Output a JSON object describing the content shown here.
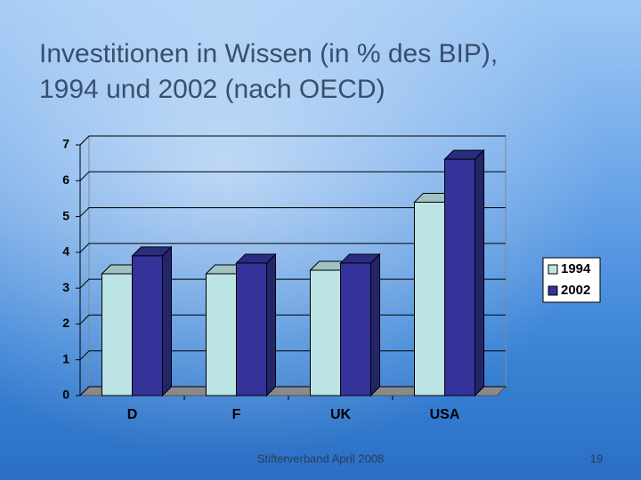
{
  "chart_data": {
    "type": "bar",
    "title": [
      "Investitionen in Wissen (in % des BIP),",
      "1994 und 2002 (nach OECD)"
    ],
    "categories": [
      "D",
      "F",
      "UK",
      "USA"
    ],
    "series": [
      {
        "name": "1994",
        "color": "#bde4e4",
        "values": [
          3.4,
          3.4,
          3.5,
          5.4
        ]
      },
      {
        "name": "2002",
        "color": "#333399",
        "values": [
          3.9,
          3.7,
          3.7,
          6.6
        ]
      }
    ],
    "ylim": [
      0,
      7
    ],
    "yticks": [
      0,
      1,
      2,
      3,
      4,
      5,
      6,
      7
    ],
    "grid": true,
    "legend": "right"
  },
  "footer": "Stifterverband April 2008",
  "page_number": "19"
}
